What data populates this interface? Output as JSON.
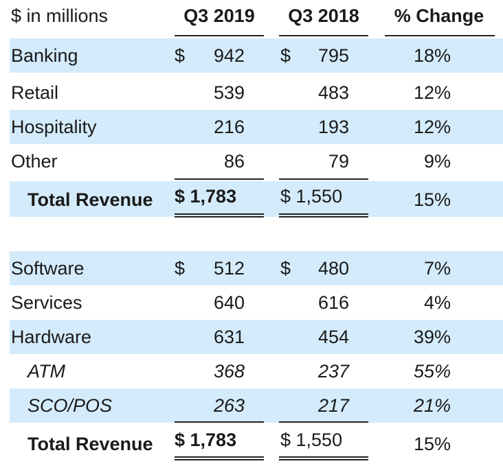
{
  "header": {
    "unit_label": "$ in millions",
    "col1": "Q3 2019",
    "col2": "Q3 2018",
    "col3": "% Change"
  },
  "segments": [
    {
      "label": "Banking",
      "dollar19": "$",
      "v19": "942",
      "dollar18": "$",
      "v18": "795",
      "pct": "18%"
    },
    {
      "label": "Retail",
      "dollar19": "",
      "v19": "539",
      "dollar18": "",
      "v18": "483",
      "pct": "12%"
    },
    {
      "label": "Hospitality",
      "dollar19": "",
      "v19": "216",
      "dollar18": "",
      "v18": "193",
      "pct": "12%"
    },
    {
      "label": "Other",
      "dollar19": "",
      "v19": "86",
      "dollar18": "",
      "v18": "79",
      "pct": "9%"
    }
  ],
  "segments_total": {
    "label": "Total Revenue",
    "v19": "$ 1,783",
    "v18": "$ 1,550",
    "pct": "15%"
  },
  "products": [
    {
      "label": "Software",
      "dollar19": "$",
      "v19": "512",
      "dollar18": "$",
      "v18": "480",
      "pct": "7%"
    },
    {
      "label": "Services",
      "dollar19": "",
      "v19": "640",
      "dollar18": "",
      "v18": "616",
      "pct": "4%"
    },
    {
      "label": "Hardware",
      "dollar19": "",
      "v19": "631",
      "dollar18": "",
      "v18": "454",
      "pct": "39%"
    },
    {
      "label": "ATM",
      "dollar19": "",
      "v19": "368",
      "dollar18": "",
      "v18": "237",
      "pct": "55%"
    },
    {
      "label": "SCO/POS",
      "dollar19": "",
      "v19": "263",
      "dollar18": "",
      "v18": "217",
      "pct": "21%"
    }
  ],
  "products_total": {
    "label": "Total Revenue",
    "v19": "$ 1,783",
    "v18": "$ 1,550",
    "pct": "15%"
  },
  "colors": {
    "row_shade": "#d4ebfb",
    "rule": "#222222",
    "text": "#1a1a1a"
  }
}
